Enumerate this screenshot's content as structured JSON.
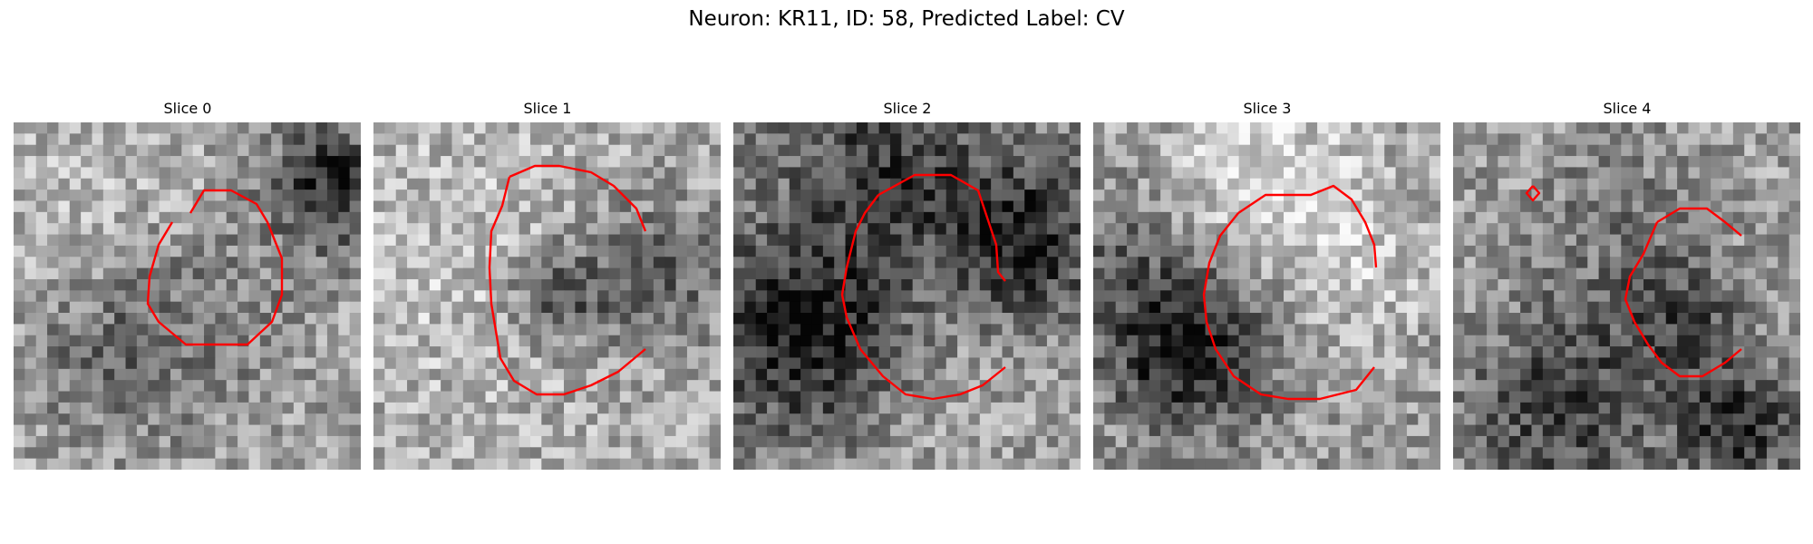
{
  "figure": {
    "title": "Neuron: KR11, ID: 58, Predicted Label: CV"
  },
  "slices": [
    {
      "title": "Slice 0",
      "seed": 11,
      "contour_color": "#ff0000"
    },
    {
      "title": "Slice 1",
      "seed": 23,
      "contour_color": "#ff0000"
    },
    {
      "title": "Slice 2",
      "seed": 37,
      "contour_color": "#ff0000"
    },
    {
      "title": "Slice 3",
      "seed": 41,
      "contour_color": "#ff0000"
    },
    {
      "title": "Slice 4",
      "seed": 59,
      "contour_color": "#ff0000"
    }
  ],
  "colormap": "gray"
}
